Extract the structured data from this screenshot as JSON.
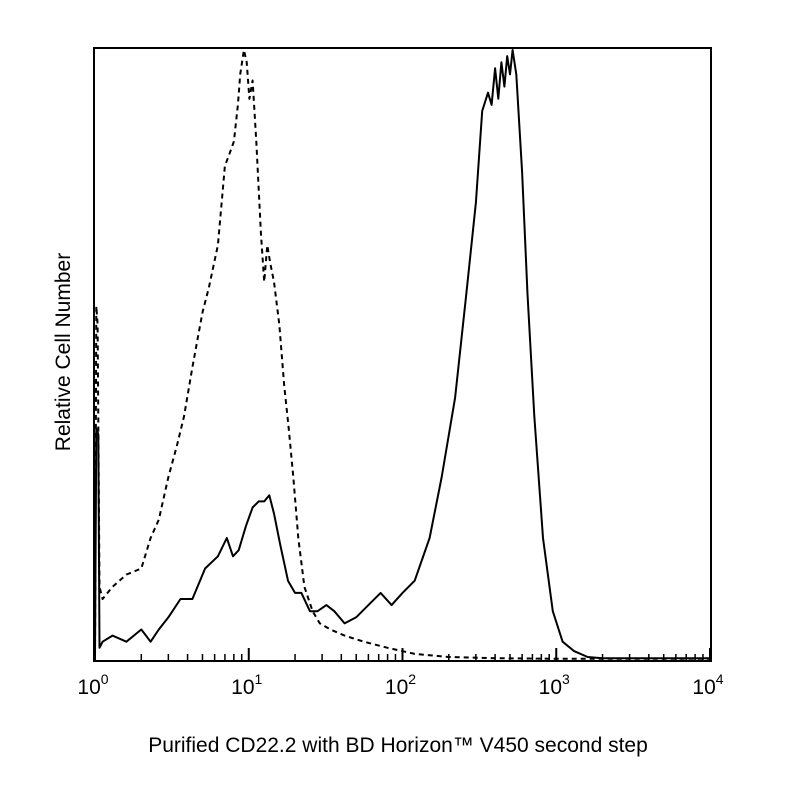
{
  "chart_data": {
    "type": "line",
    "title": "",
    "xlabel": "Purified CD22.2 with BD Horizon™ V450 second step",
    "ylabel": "Relative Cell Number",
    "x_scale": "log",
    "xlim": [
      1,
      10000
    ],
    "ylim": [
      0,
      1
    ],
    "grid": false,
    "legend": "none",
    "x_ticks": [
      {
        "base": "10",
        "exp": "0",
        "value": 1
      },
      {
        "base": "10",
        "exp": "1",
        "value": 10
      },
      {
        "base": "10",
        "exp": "2",
        "value": 100
      },
      {
        "base": "10",
        "exp": "3",
        "value": 1000
      },
      {
        "base": "10",
        "exp": "4",
        "value": 10000
      }
    ],
    "series": [
      {
        "style": "dashed",
        "color": "#000000",
        "x": [
          1.0,
          1.02,
          1.04,
          1.07,
          1.12,
          1.3,
          1.6,
          2.0,
          2.3,
          2.6,
          3.0,
          3.4,
          3.8,
          4.3,
          5.0,
          5.5,
          6.3,
          7.0,
          7.5,
          8.0,
          8.5,
          8.8,
          9.3,
          9.7,
          10.1,
          10.6,
          11.2,
          12.0,
          12.6,
          13.2,
          13.8,
          14.6,
          15.8,
          17.0,
          18.2,
          19.5,
          21.0,
          23.0,
          26.0,
          29.0,
          34.0,
          42.0,
          56.0,
          80.0,
          120.0,
          200.0,
          400.0,
          1000.0,
          3000.0,
          10000.0
        ],
        "y": [
          0.01,
          0.58,
          0.55,
          0.12,
          0.1,
          0.12,
          0.14,
          0.15,
          0.2,
          0.23,
          0.3,
          0.35,
          0.4,
          0.48,
          0.57,
          0.61,
          0.68,
          0.81,
          0.83,
          0.85,
          0.91,
          0.96,
          1.0,
          0.98,
          0.92,
          0.95,
          0.85,
          0.7,
          0.62,
          0.68,
          0.65,
          0.62,
          0.55,
          0.45,
          0.38,
          0.3,
          0.2,
          0.12,
          0.08,
          0.06,
          0.05,
          0.04,
          0.03,
          0.02,
          0.01,
          0.005,
          0.003,
          0.002,
          0.002,
          0.002
        ]
      },
      {
        "style": "solid",
        "color": "#000000",
        "x": [
          1.0,
          1.02,
          1.05,
          1.07,
          1.12,
          1.3,
          1.6,
          2.0,
          2.3,
          2.6,
          3.0,
          3.6,
          4.3,
          5.2,
          6.3,
          7.2,
          7.9,
          8.6,
          9.6,
          10.6,
          11.6,
          12.6,
          13.6,
          14.6,
          16.0,
          18.0,
          20.0,
          22.0,
          25.0,
          28.0,
          32.0,
          36.0,
          42.0,
          50.0,
          60.0,
          72.0,
          85.0,
          100.0,
          120.0,
          150.0,
          180.0,
          220.0,
          260.0,
          300.0,
          330.0,
          360.0,
          380.0,
          400.0,
          420.0,
          440.0,
          460.0,
          480.0,
          500.0,
          520.0,
          550.0,
          600.0,
          650.0,
          720.0,
          820.0,
          950.0,
          1100.0,
          1300.0,
          1600.0,
          2000.0,
          3000.0,
          10000.0
        ],
        "y": [
          0.01,
          0.38,
          0.37,
          0.02,
          0.03,
          0.04,
          0.03,
          0.05,
          0.03,
          0.05,
          0.07,
          0.1,
          0.1,
          0.15,
          0.17,
          0.2,
          0.17,
          0.18,
          0.22,
          0.25,
          0.26,
          0.26,
          0.27,
          0.24,
          0.19,
          0.13,
          0.11,
          0.11,
          0.08,
          0.08,
          0.09,
          0.08,
          0.06,
          0.07,
          0.09,
          0.11,
          0.09,
          0.11,
          0.13,
          0.2,
          0.3,
          0.43,
          0.6,
          0.75,
          0.9,
          0.93,
          0.91,
          0.97,
          0.92,
          0.98,
          0.94,
          0.99,
          0.96,
          1.0,
          0.96,
          0.8,
          0.6,
          0.4,
          0.2,
          0.08,
          0.03,
          0.015,
          0.005,
          0.003,
          0.003,
          0.003
        ]
      }
    ]
  }
}
